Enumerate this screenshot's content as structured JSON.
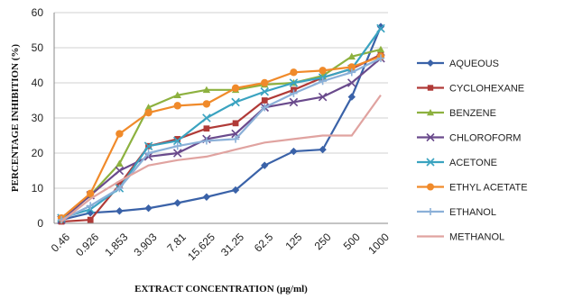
{
  "chart_data": {
    "type": "line",
    "title": "",
    "xlabel": "EXTRACT CONCENTRATION (µg/ml)",
    "ylabel": "PERCENTAGE INHIBITION (%)",
    "categories": [
      "0.46",
      "0.926",
      "1.853",
      "3.903",
      "7.81",
      "15.625",
      "31.25",
      "62.5",
      "125",
      "250",
      "500",
      "1000"
    ],
    "ylim": [
      0,
      60
    ],
    "yticks": [
      "0",
      "10",
      "20",
      "30",
      "40",
      "50",
      "60"
    ],
    "grid": true,
    "legend_position": "right",
    "series": [
      {
        "name": "AQUEOUS",
        "color": "#3a62a8",
        "marker": "diamond",
        "values": [
          1,
          3,
          3.5,
          4.3,
          5.8,
          7.5,
          9.5,
          16.5,
          20.5,
          21,
          36,
          56
        ]
      },
      {
        "name": "CYCLOHEXANE",
        "color": "#b03a37",
        "marker": "square",
        "values": [
          0.5,
          1,
          11,
          22,
          24,
          27,
          28.5,
          35,
          38,
          41.5,
          44,
          48
        ]
      },
      {
        "name": "BENZENE",
        "color": "#8db13f",
        "marker": "triangle",
        "values": [
          1,
          8,
          17,
          33,
          36.5,
          38,
          38,
          39.5,
          40,
          42,
          47.5,
          49.5
        ]
      },
      {
        "name": "CHLOROFORM",
        "color": "#6a4a8c",
        "marker": "x",
        "values": [
          1,
          8,
          15,
          19,
          20,
          24,
          25.5,
          33,
          34.5,
          36,
          40,
          47
        ]
      },
      {
        "name": "ACETONE",
        "color": "#3aa3c0",
        "marker": "x",
        "values": [
          1.5,
          4,
          10,
          22,
          23.5,
          30,
          34.5,
          37.5,
          40,
          41.5,
          44,
          55.5
        ]
      },
      {
        "name": "ETHYL ACETATE",
        "color": "#f08a2a",
        "marker": "circle",
        "values": [
          1.5,
          8.5,
          25.5,
          31.5,
          33.5,
          34,
          38.5,
          40,
          43,
          43.5,
          44.5,
          47.5
        ]
      },
      {
        "name": "ETHANOL",
        "color": "#8bb0d8",
        "marker": "plus",
        "values": [
          1,
          5,
          10,
          20,
          22,
          23.5,
          24,
          33,
          37,
          40.5,
          43,
          47
        ]
      },
      {
        "name": "METHANOL",
        "color": "#e0a3a0",
        "marker": "none",
        "values": [
          0.5,
          7,
          12,
          16.5,
          18,
          19,
          21,
          23,
          24,
          25,
          25,
          36.5
        ]
      }
    ]
  }
}
